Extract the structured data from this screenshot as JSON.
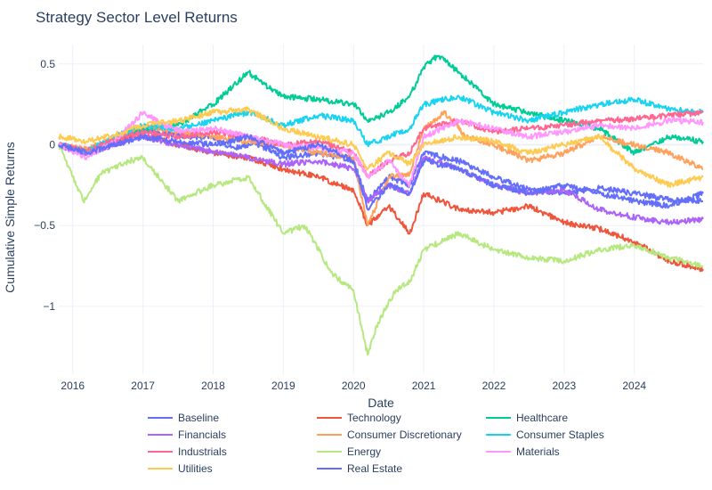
{
  "chart_data": {
    "type": "line",
    "title": "Strategy Sector Level Returns",
    "xlabel": "Date",
    "ylabel": "Cumulative Simple Returns",
    "xlim": [
      2015.8,
      2024.98
    ],
    "ylim": [
      -1.42,
      0.62
    ],
    "grid": true,
    "legend_position": "bottom",
    "x_ticks": [
      "2016",
      "2017",
      "2018",
      "2019",
      "2020",
      "2021",
      "2022",
      "2023",
      "2024"
    ],
    "y_ticks": [
      "0.5",
      "0",
      "−0.5",
      "−1"
    ],
    "series": [
      {
        "name": "Baseline",
        "color": "#636efa",
        "points": [
          [
            2015.8,
            0
          ],
          [
            2016.2,
            -0.05
          ],
          [
            2016.6,
            0.02
          ],
          [
            2017.0,
            0.09
          ],
          [
            2017.5,
            0.06
          ],
          [
            2018.0,
            0.04
          ],
          [
            2018.3,
            -0.02
          ],
          [
            2018.6,
            0.01
          ],
          [
            2019.0,
            -0.08
          ],
          [
            2019.5,
            -0.05
          ],
          [
            2020.0,
            -0.1
          ],
          [
            2020.2,
            -0.35
          ],
          [
            2020.5,
            -0.2
          ],
          [
            2020.8,
            -0.25
          ],
          [
            2021.0,
            -0.05
          ],
          [
            2021.5,
            -0.1
          ],
          [
            2022.0,
            -0.2
          ],
          [
            2022.5,
            -0.28
          ],
          [
            2023.0,
            -0.3
          ],
          [
            2023.5,
            -0.27
          ],
          [
            2024.0,
            -0.3
          ],
          [
            2024.5,
            -0.34
          ],
          [
            2024.98,
            -0.35
          ]
        ]
      },
      {
        "name": "Technology",
        "color": "#ef553b",
        "points": [
          [
            2015.8,
            0
          ],
          [
            2016.2,
            -0.04
          ],
          [
            2016.6,
            0.03
          ],
          [
            2017.0,
            0.06
          ],
          [
            2017.5,
            0.0
          ],
          [
            2018.0,
            -0.05
          ],
          [
            2018.5,
            -0.08
          ],
          [
            2019.0,
            -0.15
          ],
          [
            2019.5,
            -0.2
          ],
          [
            2020.0,
            -0.28
          ],
          [
            2020.2,
            -0.5
          ],
          [
            2020.5,
            -0.38
          ],
          [
            2020.8,
            -0.55
          ],
          [
            2021.0,
            -0.3
          ],
          [
            2021.5,
            -0.4
          ],
          [
            2022.0,
            -0.42
          ],
          [
            2022.5,
            -0.38
          ],
          [
            2023.0,
            -0.48
          ],
          [
            2023.5,
            -0.52
          ],
          [
            2024.0,
            -0.6
          ],
          [
            2024.5,
            -0.72
          ],
          [
            2024.98,
            -0.77
          ]
        ]
      },
      {
        "name": "Healthcare",
        "color": "#00cc96",
        "points": [
          [
            2015.8,
            0
          ],
          [
            2016.2,
            -0.05
          ],
          [
            2016.6,
            0.04
          ],
          [
            2017.0,
            0.1
          ],
          [
            2017.5,
            0.12
          ],
          [
            2018.0,
            0.25
          ],
          [
            2018.5,
            0.45
          ],
          [
            2018.8,
            0.35
          ],
          [
            2019.0,
            0.3
          ],
          [
            2019.5,
            0.28
          ],
          [
            2020.0,
            0.25
          ],
          [
            2020.2,
            0.15
          ],
          [
            2020.5,
            0.2
          ],
          [
            2020.8,
            0.3
          ],
          [
            2021.0,
            0.48
          ],
          [
            2021.2,
            0.55
          ],
          [
            2021.5,
            0.45
          ],
          [
            2022.0,
            0.25
          ],
          [
            2022.5,
            0.2
          ],
          [
            2023.0,
            0.15
          ],
          [
            2023.5,
            0.1
          ],
          [
            2024.0,
            -0.05
          ],
          [
            2024.5,
            0.05
          ],
          [
            2024.98,
            0.02
          ]
        ]
      },
      {
        "name": "Financials",
        "color": "#ab63fa",
        "points": [
          [
            2015.8,
            0
          ],
          [
            2016.2,
            -0.06
          ],
          [
            2016.6,
            0.0
          ],
          [
            2017.0,
            0.05
          ],
          [
            2017.5,
            0.0
          ],
          [
            2018.0,
            -0.04
          ],
          [
            2018.5,
            -0.08
          ],
          [
            2019.0,
            -0.12
          ],
          [
            2019.5,
            -0.1
          ],
          [
            2020.0,
            -0.15
          ],
          [
            2020.2,
            -0.35
          ],
          [
            2020.5,
            -0.25
          ],
          [
            2020.8,
            -0.3
          ],
          [
            2021.0,
            -0.08
          ],
          [
            2021.5,
            -0.15
          ],
          [
            2022.0,
            -0.25
          ],
          [
            2022.5,
            -0.3
          ],
          [
            2023.0,
            -0.28
          ],
          [
            2023.5,
            -0.4
          ],
          [
            2024.0,
            -0.45
          ],
          [
            2024.5,
            -0.48
          ],
          [
            2024.98,
            -0.46
          ]
        ]
      },
      {
        "name": "Consumer Discretionary",
        "color": "#ffa15a",
        "points": [
          [
            2015.8,
            0
          ],
          [
            2016.2,
            -0.03
          ],
          [
            2016.6,
            0.05
          ],
          [
            2017.0,
            0.12
          ],
          [
            2017.5,
            0.08
          ],
          [
            2018.0,
            0.05
          ],
          [
            2018.5,
            0.02
          ],
          [
            2019.0,
            0.0
          ],
          [
            2019.5,
            -0.05
          ],
          [
            2020.0,
            -0.08
          ],
          [
            2020.2,
            -0.5
          ],
          [
            2020.5,
            -0.2
          ],
          [
            2020.8,
            -0.18
          ],
          [
            2021.0,
            0.1
          ],
          [
            2021.3,
            0.2
          ],
          [
            2021.6,
            0.05
          ],
          [
            2022.0,
            0.0
          ],
          [
            2022.5,
            -0.1
          ],
          [
            2023.0,
            -0.05
          ],
          [
            2023.5,
            0.05
          ],
          [
            2024.0,
            0.0
          ],
          [
            2024.5,
            -0.05
          ],
          [
            2024.98,
            -0.15
          ]
        ]
      },
      {
        "name": "Consumer Staples",
        "color": "#19d3f3",
        "points": [
          [
            2015.8,
            0
          ],
          [
            2016.2,
            -0.04
          ],
          [
            2016.6,
            0.05
          ],
          [
            2017.0,
            0.12
          ],
          [
            2017.5,
            0.1
          ],
          [
            2018.0,
            0.15
          ],
          [
            2018.5,
            0.2
          ],
          [
            2019.0,
            0.12
          ],
          [
            2019.5,
            0.18
          ],
          [
            2020.0,
            0.15
          ],
          [
            2020.2,
            0.0
          ],
          [
            2020.5,
            0.05
          ],
          [
            2020.8,
            0.1
          ],
          [
            2021.0,
            0.25
          ],
          [
            2021.5,
            0.3
          ],
          [
            2022.0,
            0.2
          ],
          [
            2022.5,
            0.15
          ],
          [
            2023.0,
            0.2
          ],
          [
            2023.5,
            0.25
          ],
          [
            2024.0,
            0.28
          ],
          [
            2024.5,
            0.22
          ],
          [
            2024.98,
            0.2
          ]
        ]
      },
      {
        "name": "Industrials",
        "color": "#ff6692",
        "points": [
          [
            2015.8,
            0
          ],
          [
            2016.2,
            -0.04
          ],
          [
            2016.6,
            0.03
          ],
          [
            2017.0,
            0.08
          ],
          [
            2017.5,
            0.05
          ],
          [
            2018.0,
            0.08
          ],
          [
            2018.5,
            0.05
          ],
          [
            2019.0,
            0.0
          ],
          [
            2019.5,
            0.02
          ],
          [
            2020.0,
            -0.05
          ],
          [
            2020.2,
            -0.2
          ],
          [
            2020.5,
            -0.1
          ],
          [
            2020.8,
            -0.05
          ],
          [
            2021.0,
            0.1
          ],
          [
            2021.5,
            0.15
          ],
          [
            2022.0,
            0.08
          ],
          [
            2022.5,
            0.1
          ],
          [
            2023.0,
            0.12
          ],
          [
            2023.5,
            0.15
          ],
          [
            2024.0,
            0.16
          ],
          [
            2024.5,
            0.18
          ],
          [
            2024.98,
            0.2
          ]
        ]
      },
      {
        "name": "Energy",
        "color": "#b6e880",
        "points": [
          [
            2015.8,
            0
          ],
          [
            2016.0,
            -0.2
          ],
          [
            2016.15,
            -0.35
          ],
          [
            2016.4,
            -0.18
          ],
          [
            2016.8,
            -0.1
          ],
          [
            2017.0,
            -0.08
          ],
          [
            2017.5,
            -0.35
          ],
          [
            2018.0,
            -0.25
          ],
          [
            2018.5,
            -0.2
          ],
          [
            2019.0,
            -0.55
          ],
          [
            2019.3,
            -0.5
          ],
          [
            2019.7,
            -0.8
          ],
          [
            2020.0,
            -0.9
          ],
          [
            2020.2,
            -1.3
          ],
          [
            2020.35,
            -1.1
          ],
          [
            2020.6,
            -0.9
          ],
          [
            2020.8,
            -0.85
          ],
          [
            2021.0,
            -0.65
          ],
          [
            2021.5,
            -0.55
          ],
          [
            2022.0,
            -0.65
          ],
          [
            2022.5,
            -0.7
          ],
          [
            2023.0,
            -0.72
          ],
          [
            2023.5,
            -0.65
          ],
          [
            2024.0,
            -0.62
          ],
          [
            2024.5,
            -0.7
          ],
          [
            2024.98,
            -0.75
          ]
        ]
      },
      {
        "name": "Materials",
        "color": "#ff97ff",
        "points": [
          [
            2015.8,
            0
          ],
          [
            2016.2,
            -0.08
          ],
          [
            2016.6,
            0.02
          ],
          [
            2017.0,
            0.2
          ],
          [
            2017.3,
            0.12
          ],
          [
            2017.6,
            0.08
          ],
          [
            2018.0,
            0.1
          ],
          [
            2018.5,
            0.05
          ],
          [
            2019.0,
            0.0
          ],
          [
            2019.5,
            -0.02
          ],
          [
            2020.0,
            -0.05
          ],
          [
            2020.2,
            -0.2
          ],
          [
            2020.5,
            -0.1
          ],
          [
            2020.8,
            -0.25
          ],
          [
            2021.0,
            0.05
          ],
          [
            2021.5,
            0.15
          ],
          [
            2022.0,
            0.1
          ],
          [
            2022.5,
            0.05
          ],
          [
            2023.0,
            0.08
          ],
          [
            2023.5,
            0.12
          ],
          [
            2024.0,
            0.1
          ],
          [
            2024.5,
            0.15
          ],
          [
            2024.98,
            0.14
          ]
        ]
      },
      {
        "name": "Utilities",
        "color": "#fecb52",
        "points": [
          [
            2015.8,
            0.05
          ],
          [
            2016.2,
            0.02
          ],
          [
            2016.6,
            0.06
          ],
          [
            2017.0,
            0.12
          ],
          [
            2017.5,
            0.15
          ],
          [
            2018.0,
            0.2
          ],
          [
            2018.5,
            0.22
          ],
          [
            2019.0,
            0.1
          ],
          [
            2019.5,
            0.05
          ],
          [
            2020.0,
            0.0
          ],
          [
            2020.2,
            -0.15
          ],
          [
            2020.5,
            -0.05
          ],
          [
            2020.8,
            -0.12
          ],
          [
            2021.0,
            0.0
          ],
          [
            2021.5,
            0.05
          ],
          [
            2022.0,
            0.02
          ],
          [
            2022.5,
            -0.05
          ],
          [
            2023.0,
            0.0
          ],
          [
            2023.5,
            0.05
          ],
          [
            2024.0,
            -0.15
          ],
          [
            2024.5,
            -0.25
          ],
          [
            2024.98,
            -0.2
          ]
        ]
      },
      {
        "name": "Real Estate",
        "color": "#636efa",
        "points": [
          [
            2015.8,
            0
          ],
          [
            2016.2,
            -0.05
          ],
          [
            2016.6,
            0.0
          ],
          [
            2017.0,
            0.05
          ],
          [
            2017.5,
            0.02
          ],
          [
            2018.0,
            0.0
          ],
          [
            2018.5,
            0.05
          ],
          [
            2019.0,
            -0.05
          ],
          [
            2019.5,
            0.0
          ],
          [
            2020.0,
            -0.1
          ],
          [
            2020.2,
            -0.4
          ],
          [
            2020.5,
            -0.25
          ],
          [
            2020.8,
            -0.3
          ],
          [
            2021.0,
            -0.1
          ],
          [
            2021.5,
            -0.15
          ],
          [
            2022.0,
            -0.25
          ],
          [
            2022.5,
            -0.3
          ],
          [
            2023.0,
            -0.25
          ],
          [
            2023.5,
            -0.3
          ],
          [
            2024.0,
            -0.35
          ],
          [
            2024.5,
            -0.38
          ],
          [
            2024.98,
            -0.3
          ]
        ]
      }
    ]
  }
}
